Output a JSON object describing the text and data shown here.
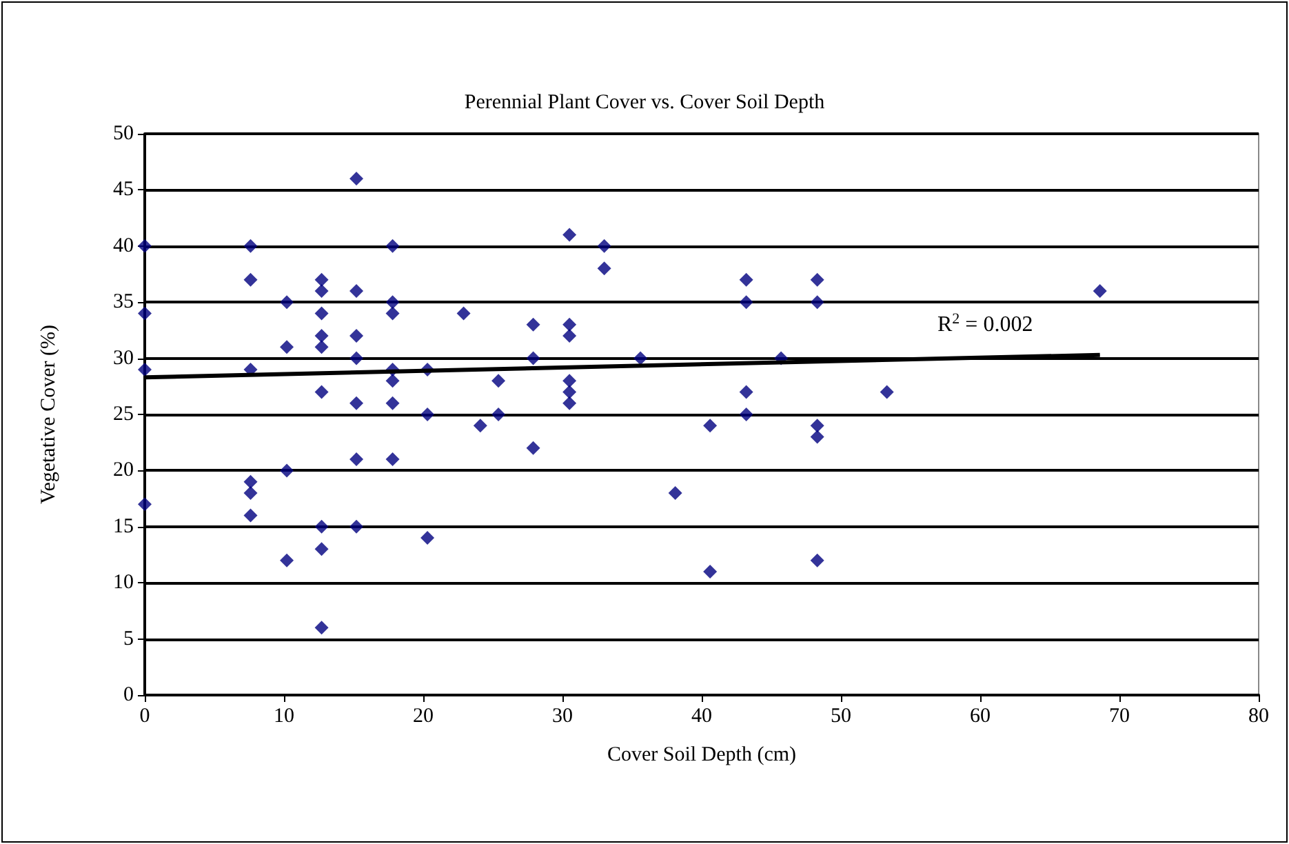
{
  "chart_data": {
    "type": "scatter",
    "title": "Perennial Plant Cover vs. Cover Soil Depth",
    "xlabel": "Cover Soil Depth (cm)",
    "ylabel": "Vegetative Cover (%)",
    "xlim": [
      0,
      80
    ],
    "xticks": [
      0,
      10,
      20,
      30,
      40,
      50,
      60,
      70,
      80
    ],
    "ylim": [
      0,
      50
    ],
    "yticks": [
      0,
      5,
      10,
      15,
      20,
      25,
      30,
      35,
      40,
      45,
      50
    ],
    "grid": "y",
    "marker": "diamond",
    "annotations": [
      "R$^{2}$ = 0.002"
    ],
    "series": [
      {
        "color": "#000080",
        "x": [
          0,
          0,
          0,
          0,
          7.6,
          7.6,
          7.6,
          7.6,
          7.6,
          7.6,
          10.2,
          10.2,
          10.2,
          10.2,
          12.7,
          12.7,
          12.7,
          12.7,
          12.7,
          12.7,
          12.7,
          12.7,
          12.7,
          15.2,
          15.2,
          15.2,
          15.2,
          15.2,
          15.2,
          15.2,
          17.8,
          17.8,
          17.8,
          17.8,
          17.8,
          17.8,
          17.8,
          20.3,
          20.3,
          20.3,
          22.9,
          24.1,
          25.4,
          25.4,
          27.9,
          27.9,
          27.9,
          30.5,
          30.5,
          30.5,
          30.5,
          30.5,
          30.5,
          33,
          33,
          35.6,
          38.1,
          40.6,
          40.6,
          43.2,
          43.2,
          43.2,
          43.2,
          45.7,
          48.3,
          48.3,
          48.3,
          48.3,
          48.3,
          53.3,
          68.6
        ],
        "values": [
          40,
          34,
          29,
          17,
          40,
          37,
          29,
          19,
          18,
          16,
          35,
          31,
          20,
          12,
          37,
          36,
          34,
          32,
          31,
          27,
          15,
          13,
          6,
          46,
          36,
          32,
          30,
          26,
          21,
          15,
          40,
          35,
          34,
          29,
          28,
          26,
          21,
          29,
          25,
          14,
          34,
          24,
          28,
          25,
          33,
          30,
          22,
          41,
          33,
          32,
          28,
          27,
          26,
          40,
          38,
          30,
          18,
          24,
          11,
          37,
          35,
          27,
          25,
          30,
          37,
          35,
          24,
          23,
          12,
          27,
          36
        ]
      },
      {
        "type": "line",
        "color": "#000000",
        "marker": "none",
        "x": [
          0,
          68.6
        ],
        "values": [
          28.3,
          30.3
        ]
      }
    ]
  }
}
